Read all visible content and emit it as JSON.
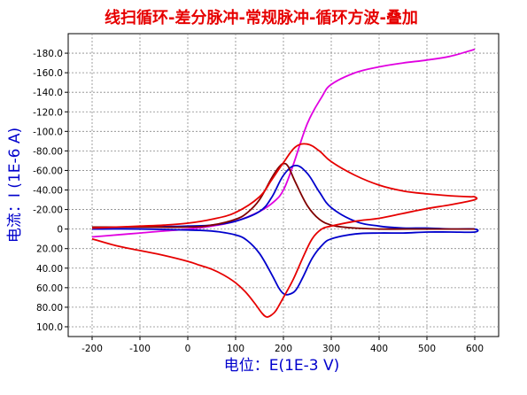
{
  "chart_data": {
    "type": "line",
    "title": "线扫循环-差分脉冲-常规脉冲-循环方波-叠加",
    "xlabel": "电位：E(1E-3 V)",
    "ylabel": "电流：I (1E-6 A)",
    "xlim": [
      -250,
      650
    ],
    "ylim": [
      -200,
      110
    ],
    "y_inverted": true,
    "grid": true,
    "x_ticks": [
      -200,
      -100,
      0,
      100,
      200,
      300,
      400,
      500,
      600
    ],
    "x_tick_labels": [
      "-200",
      "-100",
      "0",
      "100",
      "200",
      "300",
      "400",
      "500",
      "600"
    ],
    "y_ticks": [
      -180,
      -160,
      -140,
      -120,
      -100,
      -80,
      -60,
      -40,
      -20,
      0,
      20,
      40,
      60,
      80,
      100
    ],
    "y_tick_labels": [
      "-180.0",
      "-160.0",
      "-140.0",
      "-120.0",
      "-100.0",
      "-80.00",
      "-60.00",
      "-40.00",
      "-20.00",
      "0",
      "20.00",
      "40.00",
      "60.00",
      "80.00",
      "100.0"
    ],
    "colors": {
      "title": "#e60000",
      "axis_title": "#0000cc",
      "grid": "#888888"
    },
    "series": [
      {
        "color": "#e000e0",
        "x": [
          -200,
          -150,
          -100,
          -50,
          0,
          50,
          100,
          150,
          180,
          200,
          220,
          250,
          280,
          300,
          350,
          400,
          450,
          500,
          550,
          600
        ],
        "y": [
          8,
          6,
          4,
          2,
          0,
          -3,
          -8,
          -18,
          -28,
          -40,
          -65,
          -108,
          -135,
          -148,
          -160,
          -166,
          -170,
          -173,
          -177,
          -184
        ]
      },
      {
        "color": "#0000cc",
        "x": [
          -200,
          -100,
          0,
          50,
          100,
          150,
          175,
          200,
          225,
          250,
          275,
          300,
          350,
          400,
          450,
          500,
          550,
          600,
          600,
          550,
          500,
          450,
          400,
          350,
          300,
          280,
          260,
          240,
          225,
          210,
          200,
          190,
          175,
          150,
          125,
          100,
          50,
          0,
          -100,
          -200
        ],
        "y": [
          -2,
          -2,
          -3,
          -4,
          -8,
          -18,
          -32,
          -55,
          -65,
          -57,
          -38,
          -22,
          -8,
          -3,
          -1,
          -1,
          0,
          0,
          3,
          3,
          3,
          4,
          4,
          5,
          10,
          17,
          30,
          50,
          63,
          67,
          66,
          60,
          46,
          25,
          12,
          6,
          2,
          1,
          0,
          0
        ]
      },
      {
        "color": "#800000",
        "x": [
          -200,
          -100,
          0,
          50,
          100,
          125,
          150,
          175,
          190,
          200,
          210,
          225,
          250,
          275,
          300,
          325,
          350,
          400,
          500,
          600
        ],
        "y": [
          -2,
          -2,
          -2,
          -4,
          -10,
          -17,
          -30,
          -52,
          -63,
          -67,
          -64,
          -48,
          -24,
          -10,
          -4,
          -2,
          -1,
          0,
          0,
          0
        ]
      },
      {
        "color": "#e60000",
        "x": [
          -200,
          -150,
          -100,
          -50,
          0,
          50,
          100,
          150,
          175,
          200,
          225,
          250,
          275,
          300,
          350,
          400,
          450,
          500,
          550,
          590,
          600,
          600,
          550,
          500,
          450,
          400,
          350,
          300,
          280,
          260,
          240,
          220,
          200,
          185,
          175,
          165,
          155,
          140,
          120,
          100,
          75,
          50,
          25,
          0,
          -50,
          -100,
          -150,
          -200
        ],
        "y": [
          -1,
          -2,
          -3,
          -4,
          -6,
          -10,
          -17,
          -33,
          -50,
          -68,
          -84,
          -87,
          -80,
          -69,
          -55,
          -45,
          -39,
          -36,
          -34,
          -33,
          -33,
          -30,
          -25,
          -21,
          -16,
          -11,
          -8,
          -3,
          0,
          10,
          30,
          52,
          70,
          83,
          88,
          90,
          86,
          76,
          64,
          55,
          47,
          41,
          37,
          33,
          27,
          22,
          17,
          10
        ]
      }
    ]
  }
}
